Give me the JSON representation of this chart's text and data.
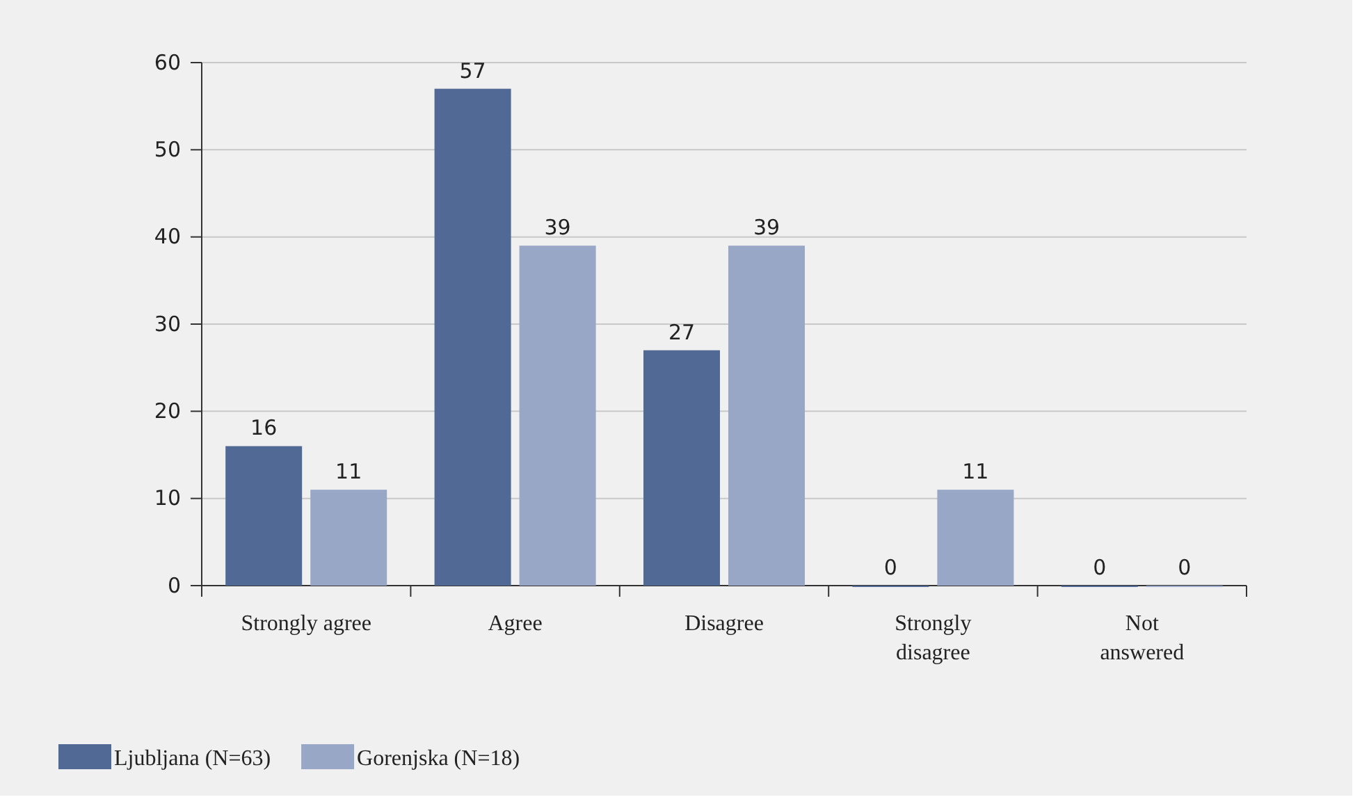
{
  "chart_data": {
    "type": "bar",
    "categories": [
      "Strongly agree",
      "Agree",
      "Disagree",
      "Strongly\ndisagree",
      "Not\nanswered"
    ],
    "series": [
      {
        "name": "Ljubljana (N=63)",
        "color": "#506995",
        "values": [
          16,
          57,
          27,
          0,
          0
        ]
      },
      {
        "name": "Gorenjska (N=18)",
        "color": "#99a7c7",
        "values": [
          11,
          39,
          39,
          11,
          0
        ]
      }
    ],
    "ylim": [
      0,
      60
    ],
    "yticks": [
      0,
      10,
      20,
      30,
      40,
      50,
      60
    ],
    "grid": "y",
    "data_labels": true,
    "legend": "bottom left"
  }
}
